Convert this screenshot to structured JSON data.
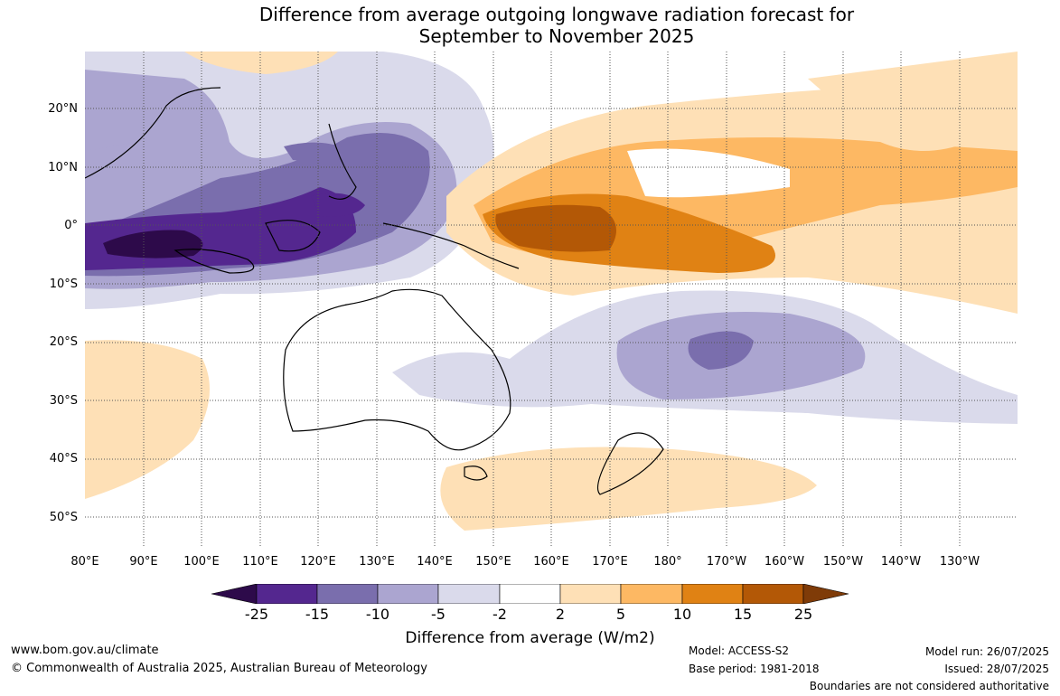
{
  "title_line1": "Difference from average outgoing longwave radiation forecast for",
  "title_line2": "September to November 2025",
  "lat_labels": [
    "20°N",
    "10°N",
    "0°",
    "10°S",
    "20°S",
    "30°S",
    "40°S",
    "50°S"
  ],
  "lon_labels": [
    "80°E",
    "90°E",
    "100°E",
    "110°E",
    "120°E",
    "130°E",
    "140°E",
    "150°E",
    "160°E",
    "170°E",
    "180°",
    "170°W",
    "160°W",
    "150°W",
    "140°W",
    "130°W"
  ],
  "colorbar": {
    "ticks": [
      "-25",
      "-15",
      "-10",
      "-5",
      "-2",
      "2",
      "5",
      "10",
      "15",
      "25"
    ],
    "colors": [
      "#2d0a4a",
      "#54278f",
      "#7a6ead",
      "#aba5d0",
      "#dadaeb",
      "#ffffff",
      "#fee0b6",
      "#fdb863",
      "#e08214",
      "#b35806",
      "#7f3b08"
    ],
    "title": "Difference from average (W/m2)"
  },
  "footer": {
    "url": "www.bom.gov.au/climate",
    "copyright": "© Commonwealth of Australia 2025, Australian Bureau of Meteorology",
    "model": "Model: ACCESS-S2",
    "base_period": "Base period: 1981-2018",
    "model_run": "Model run: 26/07/2025",
    "issued": "Issued: 28/07/2025",
    "disclaimer": "Boundaries are not considered authoritative"
  }
}
